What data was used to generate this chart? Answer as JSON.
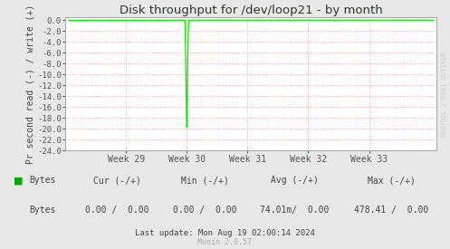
{
  "title": "Disk throughput for /dev/loop21 - by month",
  "ylabel": "Pr second read (-) / write (+)",
  "background_color": "#e8e8e8",
  "plot_bg_color": "#ffffff",
  "grid_color": "#ffaaaa",
  "ylim": [
    -24,
    0.5
  ],
  "ytick_vals": [
    0.0,
    -2.0,
    -4.0,
    -6.0,
    -8.0,
    -10.0,
    -12.0,
    -14.0,
    -16.0,
    -18.0,
    -20.0,
    -22.0,
    -24.0
  ],
  "ytick_labels": [
    "0.0",
    "-2.0",
    "-4.0",
    "-6.0",
    "-8.0",
    "-10.0",
    "-12.0",
    "-14.0",
    "-16.0",
    "-18.0",
    "-20.0",
    "-22.0",
    "-24.0"
  ],
  "xlim_min": 0,
  "xlim_max": 5.5,
  "xtick_positions": [
    0.9,
    1.8,
    2.7,
    3.6,
    4.5
  ],
  "xtick_labels": [
    "Week 29",
    "Week 30",
    "Week 31",
    "Week 32",
    "Week 33"
  ],
  "line_color": "#00ee00",
  "spike_x": 1.8,
  "spike_y": -20.8,
  "legend_label": "Bytes",
  "legend_color": "#00aa00",
  "cur_label": "Cur (-/+)",
  "cur_value": "0.00 /  0.00",
  "min_label": "Min (-/+)",
  "min_value": "0.00 /  0.00",
  "avg_label": "Avg (-/+)",
  "avg_value": "74.01m/  0.00",
  "max_label": "Max (-/+)",
  "max_value": "478.41 /  0.00",
  "last_update": "Last update: Mon Aug 19 02:00:14 2024",
  "munin_label": "Munin 2.0.57",
  "watermark": "RRDTOOL / TOBI OETIKER",
  "border_color": "#aaaaaa",
  "tick_color": "#555555",
  "label_color": "#444444",
  "title_color": "#333333"
}
